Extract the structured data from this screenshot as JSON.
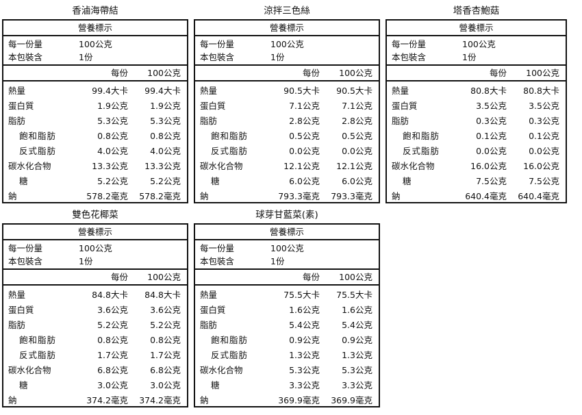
{
  "labels": {
    "header": "營養標示",
    "serving_size": "每一份量",
    "servings_per_pack": "本包裝含",
    "col_per_serving": "每份",
    "col_per_100g": "100公克",
    "nutrients": [
      "熱量",
      "蛋白質",
      "脂肪",
      "飽和脂肪",
      "反式脂肪",
      "碳水化合物",
      "糖",
      "鈉"
    ],
    "indented": [
      false,
      false,
      false,
      true,
      true,
      false,
      true,
      false
    ]
  },
  "panels": [
    {
      "name": "香滷海帶結",
      "serving_size": "100公克",
      "servings": "1份",
      "per_serving": [
        "99.4大卡",
        "1.9公克",
        "5.3公克",
        "0.8公克",
        "4.0公克",
        "13.3公克",
        "5.2公克",
        "578.2毫克"
      ],
      "per_100g": [
        "99.4大卡",
        "1.9公克",
        "5.3公克",
        "0.8公克",
        "4.0公克",
        "13.3公克",
        "5.2公克",
        "578.2毫克"
      ]
    },
    {
      "name": "涼拌三色絲",
      "serving_size": "100公克",
      "servings": "1份",
      "per_serving": [
        "90.5大卡",
        "7.1公克",
        "2.8公克",
        "0.5公克",
        "0.0公克",
        "12.1公克",
        "6.0公克",
        "793.3毫克"
      ],
      "per_100g": [
        "90.5大卡",
        "7.1公克",
        "2.8公克",
        "0.5公克",
        "0.0公克",
        "12.1公克",
        "6.0公克",
        "793.3毫克"
      ]
    },
    {
      "name": "塔香杏鮑菇",
      "serving_size": "100公克",
      "servings": "1份",
      "per_serving": [
        "80.8大卡",
        "3.5公克",
        "0.3公克",
        "0.1公克",
        "0.0公克",
        "16.0公克",
        "7.5公克",
        "640.4毫克"
      ],
      "per_100g": [
        "80.8大卡",
        "3.5公克",
        "0.3公克",
        "0.1公克",
        "0.0公克",
        "16.0公克",
        "7.5公克",
        "640.4毫克"
      ]
    },
    {
      "name": "雙色花椰菜",
      "serving_size": "100公克",
      "servings": "1份",
      "per_serving": [
        "84.8大卡",
        "3.6公克",
        "5.2公克",
        "0.8公克",
        "1.7公克",
        "6.8公克",
        "3.0公克",
        "374.2毫克"
      ],
      "per_100g": [
        "84.8大卡",
        "3.6公克",
        "5.2公克",
        "0.8公克",
        "1.7公克",
        "6.8公克",
        "3.0公克",
        "374.2毫克"
      ]
    },
    {
      "name": "球芽甘藍菜(素)",
      "serving_size": "100公克",
      "servings": "1份",
      "per_serving": [
        "75.5大卡",
        "1.6公克",
        "5.4公克",
        "0.9公克",
        "1.3公克",
        "5.3公克",
        "3.3公克",
        "369.9毫克"
      ],
      "per_100g": [
        "75.5大卡",
        "1.6公克",
        "5.4公克",
        "0.9公克",
        "1.3公克",
        "5.3公克",
        "3.3公克",
        "369.9毫克"
      ]
    }
  ]
}
